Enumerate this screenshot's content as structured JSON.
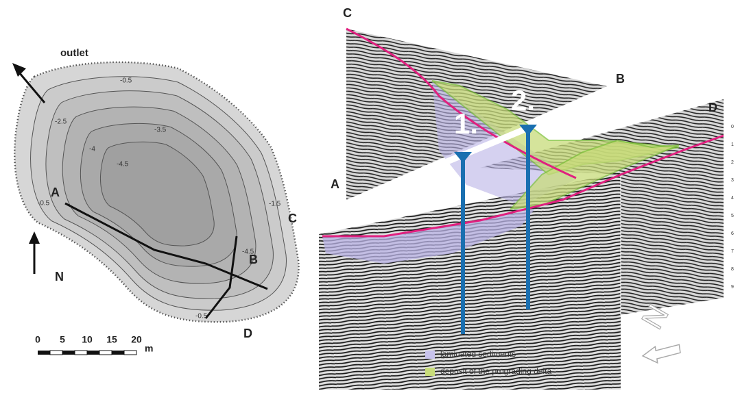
{
  "map": {
    "labels": {
      "outlet": "outlet",
      "A": "A",
      "B": "B",
      "C": "C",
      "D": "D",
      "north": "N"
    },
    "contours": [
      "-0.5",
      "-2.5",
      "-3.5",
      "-4",
      "-4.5",
      "-1.5",
      "-4.5",
      "-0.5",
      "-0.5"
    ],
    "scale": {
      "ticks": [
        "0",
        "5",
        "10",
        "15",
        "20"
      ],
      "unit": "m"
    }
  },
  "profiles": {
    "labels": {
      "C": "C",
      "B": "B",
      "A": "A",
      "D": "D"
    },
    "markers": [
      "1.",
      "2."
    ],
    "depth_ticks": [
      "0",
      "1",
      "2",
      "3",
      "4",
      "5",
      "6",
      "7",
      "8",
      "9"
    ],
    "compass": "N"
  },
  "legend": [
    {
      "label": "laminated sediments"
    },
    {
      "label": "deposit of the prograding delta"
    }
  ]
}
